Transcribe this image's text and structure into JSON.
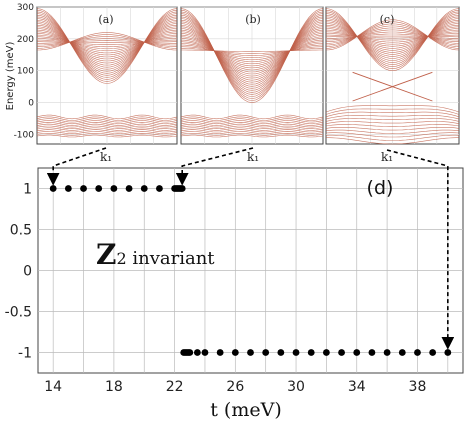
{
  "chart_data": [
    {
      "type": "line",
      "panel_label": "(a)",
      "xlabel": "k₁",
      "ylabel": "Energy  (meV)",
      "ylim": [
        -130,
        300
      ],
      "yticks": [
        -100,
        0,
        100,
        200,
        300
      ],
      "grid": true,
      "bands": {
        "conduction_top_meV": 295,
        "conduction_min_center_meV": 60,
        "valence_top_meV": -45,
        "valence_bottom_meV": -105,
        "gap_description": "gapped"
      }
    },
    {
      "type": "line",
      "panel_label": "(b)",
      "xlabel": "k₁",
      "ylim": [
        -130,
        300
      ],
      "grid": true,
      "bands": {
        "conduction_top_meV": 295,
        "conduction_min_center_meV": 0,
        "valence_top_meV": -45,
        "valence_bottom_meV": -105,
        "gap_description": "gap closing"
      }
    },
    {
      "type": "line",
      "panel_label": "(c)",
      "xlabel": "k₁",
      "ylim": [
        -130,
        300
      ],
      "grid": true,
      "bands": {
        "conduction_top_meV": 295,
        "conduction_min_center_meV": 100,
        "valence_top_meV": 0,
        "valence_bottom_meV": -120,
        "edge_states": true,
        "gap_description": "inverted with edge states"
      }
    },
    {
      "type": "scatter",
      "panel_label": "(d)",
      "xlabel": "t (meV)",
      "ylabel": "",
      "annotation": {
        "main": "Z",
        "sub": "2",
        "text": " invariant"
      },
      "xlim": [
        13,
        41
      ],
      "ylim": [
        -1.25,
        1.25
      ],
      "xticks": [
        14,
        18,
        22,
        26,
        30,
        34,
        38
      ],
      "yticks": [
        1,
        0.5,
        0,
        -0.5,
        -1
      ],
      "ytick_labels": [
        "1",
        "0.5",
        "0",
        "-0.5",
        "-1"
      ],
      "grid": true,
      "series": [
        {
          "x": [
            14,
            15,
            16,
            17,
            18,
            19,
            20,
            21,
            22,
            22.1,
            22.2,
            22.3,
            22.4,
            22.5
          ],
          "y": [
            1,
            1,
            1,
            1,
            1,
            1,
            1,
            1,
            1,
            1,
            1,
            1,
            1,
            1
          ]
        },
        {
          "x": [
            22.6,
            22.7,
            22.8,
            22.9,
            23,
            23.5,
            24,
            25,
            26,
            27,
            28,
            29,
            30,
            31,
            32,
            33,
            34,
            35,
            36,
            37,
            38,
            39,
            40
          ],
          "y": [
            -1,
            -1,
            -1,
            -1,
            -1,
            -1,
            -1,
            -1,
            -1,
            -1,
            -1,
            -1,
            -1,
            -1,
            -1,
            -1,
            -1,
            -1,
            -1,
            -1,
            -1,
            -1,
            -1
          ]
        }
      ],
      "arrows_from_panels": [
        {
          "panel": "(a)",
          "to_x": 14,
          "to_y": 1
        },
        {
          "panel": "(b)",
          "to_x": 22.5,
          "to_y": 1
        },
        {
          "panel": "(c)",
          "to_x": 40,
          "to_y": -1
        }
      ]
    }
  ],
  "colors": {
    "band": "#c0604a",
    "axis": "#444444",
    "grid": "#bbbbbb",
    "points": "#000000",
    "text": "#222222"
  }
}
